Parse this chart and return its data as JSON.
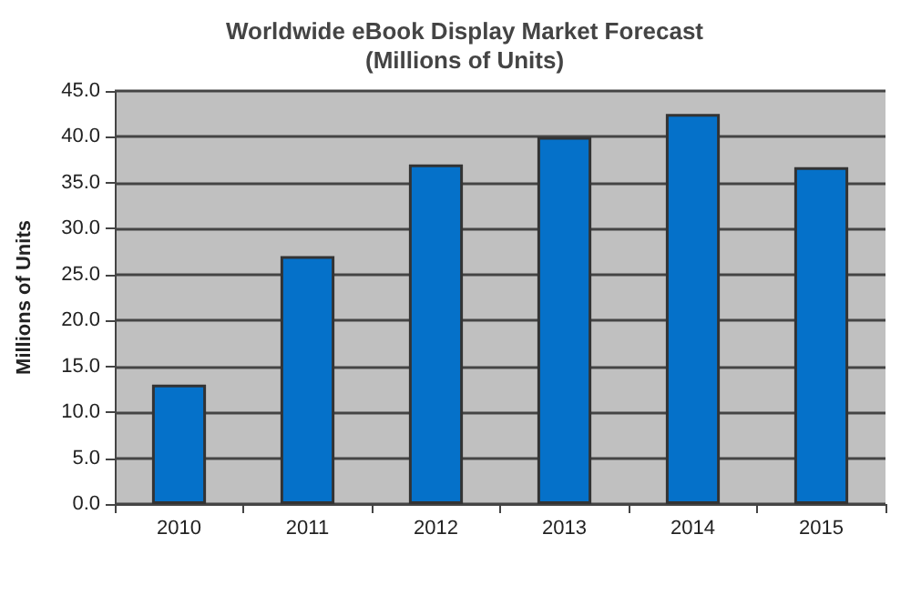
{
  "chart_data": {
    "type": "bar",
    "title": "Worldwide eBook Display Market Forecast\n(Millions of Units)",
    "ylabel": "Millions of Units",
    "categories": [
      "2010",
      "2011",
      "2012",
      "2013",
      "2014",
      "2015"
    ],
    "values": [
      13.0,
      27.0,
      37.0,
      40.0,
      42.5,
      36.7
    ],
    "color": "#0571c9",
    "ylim": [
      0,
      45
    ],
    "yticks": [
      {
        "value": 0,
        "label": "0.0"
      },
      {
        "value": 5,
        "label": "5.0"
      },
      {
        "value": 10,
        "label": "10.0"
      },
      {
        "value": 15,
        "label": "15.0"
      },
      {
        "value": 20,
        "label": "20.0"
      },
      {
        "value": 25,
        "label": "25.0"
      },
      {
        "value": 30,
        "label": "30.0"
      },
      {
        "value": 35,
        "label": "35.0"
      },
      {
        "value": 40,
        "label": "40.0"
      },
      {
        "value": 45,
        "label": "45.0"
      }
    ],
    "grid": "y"
  }
}
